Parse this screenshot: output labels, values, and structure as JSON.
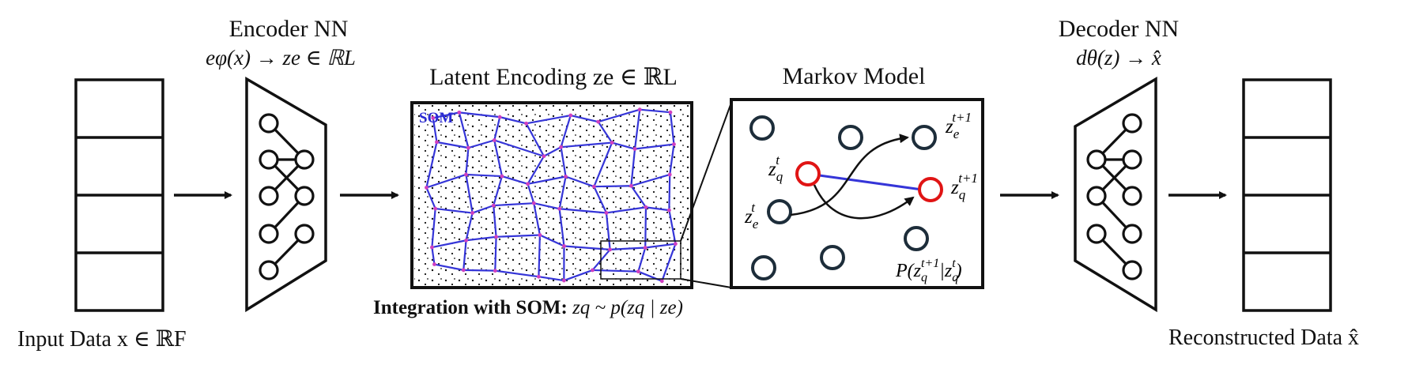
{
  "labels": {
    "encoder_title": "Encoder NN",
    "encoder_eq": "eφ(x) → ze ∈ ℝL",
    "latent_title": "Latent Encoding ze ∈ ℝL",
    "markov_title": "Markov Model",
    "decoder_title": "Decoder NN",
    "decoder_eq": "dθ(z) → x̂",
    "input_label": "Input Data x ∈ ℝF",
    "output_label": "Reconstructed Data x̂",
    "integration_bold": "Integration with SOM:",
    "integration_eq": "zq ~ p(zq | ze)",
    "som_tag": "SOM"
  },
  "markov": {
    "z_e_t1": "ze t+1",
    "z_q_t": "zq t",
    "z_q_t1": "zq t+1",
    "z_e_t": "ze t",
    "transition": "P(zq t+1 | zq t)"
  },
  "colors": {
    "som_grid": "#3535d8",
    "som_nodes": "#d040c0",
    "node_outline": "#1d2d3a",
    "highlight": "#e01414",
    "line": "#111111"
  }
}
